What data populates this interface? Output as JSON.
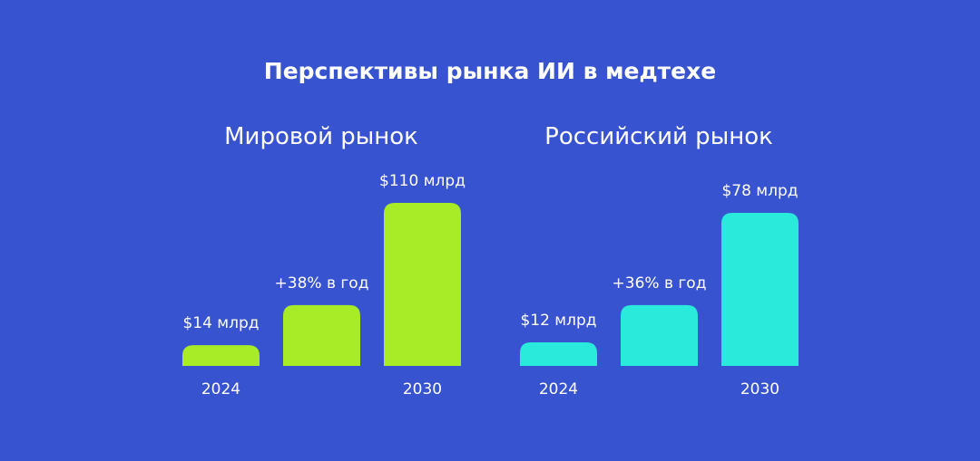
{
  "title": "Перспективы рынка ИИ в медтехе",
  "colors": {
    "background": "#3853cf",
    "world_bar": "#a8ec27",
    "russia_bar": "#29eadb"
  },
  "chart_data": [
    {
      "type": "bar",
      "title": "Мировой рынок",
      "categories": [
        "2024",
        "",
        "2030"
      ],
      "values": [
        14,
        41,
        110
      ],
      "data_labels": [
        "$14 млрд",
        "+38% в год",
        "$110 млрд"
      ],
      "color": "#a8ec27",
      "grid": false
    },
    {
      "type": "bar",
      "title": "Российский рынок",
      "categories": [
        "2024",
        "",
        "2030"
      ],
      "values": [
        12,
        31,
        78
      ],
      "data_labels": [
        "$12 млрд",
        "+36% в год",
        "$78 млрд"
      ],
      "color": "#29eadb",
      "grid": false
    }
  ]
}
